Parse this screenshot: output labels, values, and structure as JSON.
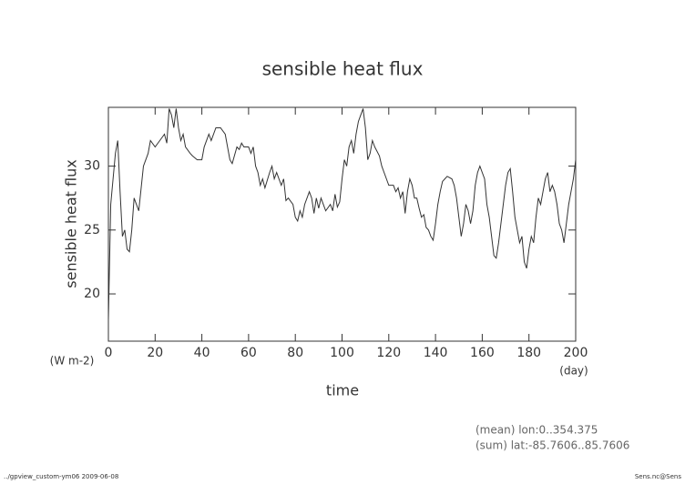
{
  "chart_data": {
    "type": "line",
    "title": "sensible heat flux",
    "ylabel": "sensible heat flux",
    "yunits": "(W m-2)",
    "xlabel": "time",
    "xunits": "(day)",
    "annotations": [
      "(mean) lon:0..354.375",
      "(sum) lat:-85.7606..85.7606"
    ],
    "footer_left": "../gpview_custom-ym06  2009-06-08",
    "footer_right": "Sens.nc@Sens",
    "color": "#333333",
    "xlim": [
      0,
      200
    ],
    "ylim": [
      16.3,
      34.6
    ],
    "xticks": [
      0,
      20,
      40,
      60,
      80,
      100,
      120,
      140,
      160,
      180,
      200
    ],
    "yticks": [
      20,
      25,
      30
    ],
    "x": [
      0,
      1,
      2,
      3,
      4,
      5,
      6,
      7,
      8,
      9,
      10,
      11,
      12,
      13,
      15,
      17,
      18,
      20,
      22,
      24,
      25,
      26,
      27,
      28,
      29,
      30,
      31,
      32,
      33,
      35,
      36,
      38,
      40,
      41,
      43,
      44,
      46,
      48,
      50,
      51,
      52,
      53,
      55,
      56,
      57,
      58,
      60,
      61,
      62,
      63,
      64,
      65,
      66,
      67,
      69,
      70,
      71,
      72,
      74,
      75,
      76,
      77,
      79,
      80,
      81,
      82,
      83,
      84,
      86,
      87,
      88,
      89,
      90,
      91,
      92,
      93,
      95,
      96,
      97,
      98,
      99,
      100,
      101,
      102,
      103,
      104,
      105,
      106,
      107,
      108,
      109,
      110,
      111,
      112,
      113,
      114,
      116,
      117,
      118,
      120,
      122,
      123,
      124,
      125,
      126,
      127,
      128,
      129,
      130,
      131,
      132,
      133,
      134,
      135,
      136,
      137,
      138,
      139,
      140,
      141,
      142,
      143,
      144,
      145,
      147,
      148,
      149,
      150,
      151,
      152,
      153,
      154,
      155,
      156,
      157,
      158,
      159,
      160,
      161,
      162,
      163,
      164,
      165,
      166,
      167,
      168,
      169,
      170,
      171,
      172,
      173,
      174,
      175,
      176,
      177,
      178,
      179,
      180,
      181,
      182,
      183,
      184,
      185,
      186,
      187,
      188,
      189,
      190,
      191,
      192,
      193,
      194,
      195,
      196,
      197,
      198,
      199,
      200
    ],
    "values": [
      18,
      27,
      29,
      31,
      32,
      28,
      24.5,
      25,
      23.5,
      23.3,
      25,
      27.5,
      27,
      26.5,
      30,
      31,
      32,
      31.5,
      32,
      32.5,
      31.8,
      34.5,
      34,
      33,
      34.5,
      33,
      32,
      32.5,
      31.5,
      31,
      30.8,
      30.5,
      30.5,
      31.5,
      32.5,
      32,
      33,
      33,
      32.5,
      31.5,
      30.5,
      30.2,
      31.5,
      31.3,
      31.8,
      31.5,
      31.5,
      31,
      31.5,
      30,
      29.5,
      28.5,
      29,
      28.3,
      29.5,
      30,
      29,
      29.5,
      28.5,
      29,
      27.3,
      27.5,
      27,
      26,
      25.7,
      26.5,
      26,
      27,
      28,
      27.5,
      26.3,
      27.5,
      26.7,
      27.5,
      27,
      26.5,
      27,
      26.5,
      27.8,
      26.8,
      27.2,
      29,
      30.5,
      30,
      31.5,
      32,
      31,
      32.5,
      33.5,
      34,
      34.5,
      33,
      30.5,
      31,
      32,
      31.5,
      30.8,
      30,
      29.5,
      28.5,
      28.5,
      28,
      28.3,
      27.5,
      28,
      26.3,
      28,
      29,
      28.5,
      27.5,
      27.5,
      26.7,
      26,
      26.2,
      25.2,
      25,
      24.5,
      24.2,
      25.5,
      27,
      28,
      28.8,
      29,
      29.2,
      29,
      28.5,
      27.5,
      26,
      24.5,
      25.5,
      27,
      26.5,
      25.5,
      26.5,
      28.5,
      29.5,
      30,
      29.5,
      29,
      27,
      26,
      24.5,
      23,
      22.8,
      24,
      25.5,
      27,
      28.5,
      29.5,
      29.8,
      28,
      26,
      25,
      24,
      24.5,
      22.5,
      22,
      23.5,
      24.5,
      24,
      26,
      27.5,
      27,
      28,
      29,
      29.5,
      28,
      28.5,
      28,
      27,
      25.5,
      25,
      24,
      25.5,
      27,
      28,
      29,
      30.5
    ]
  }
}
